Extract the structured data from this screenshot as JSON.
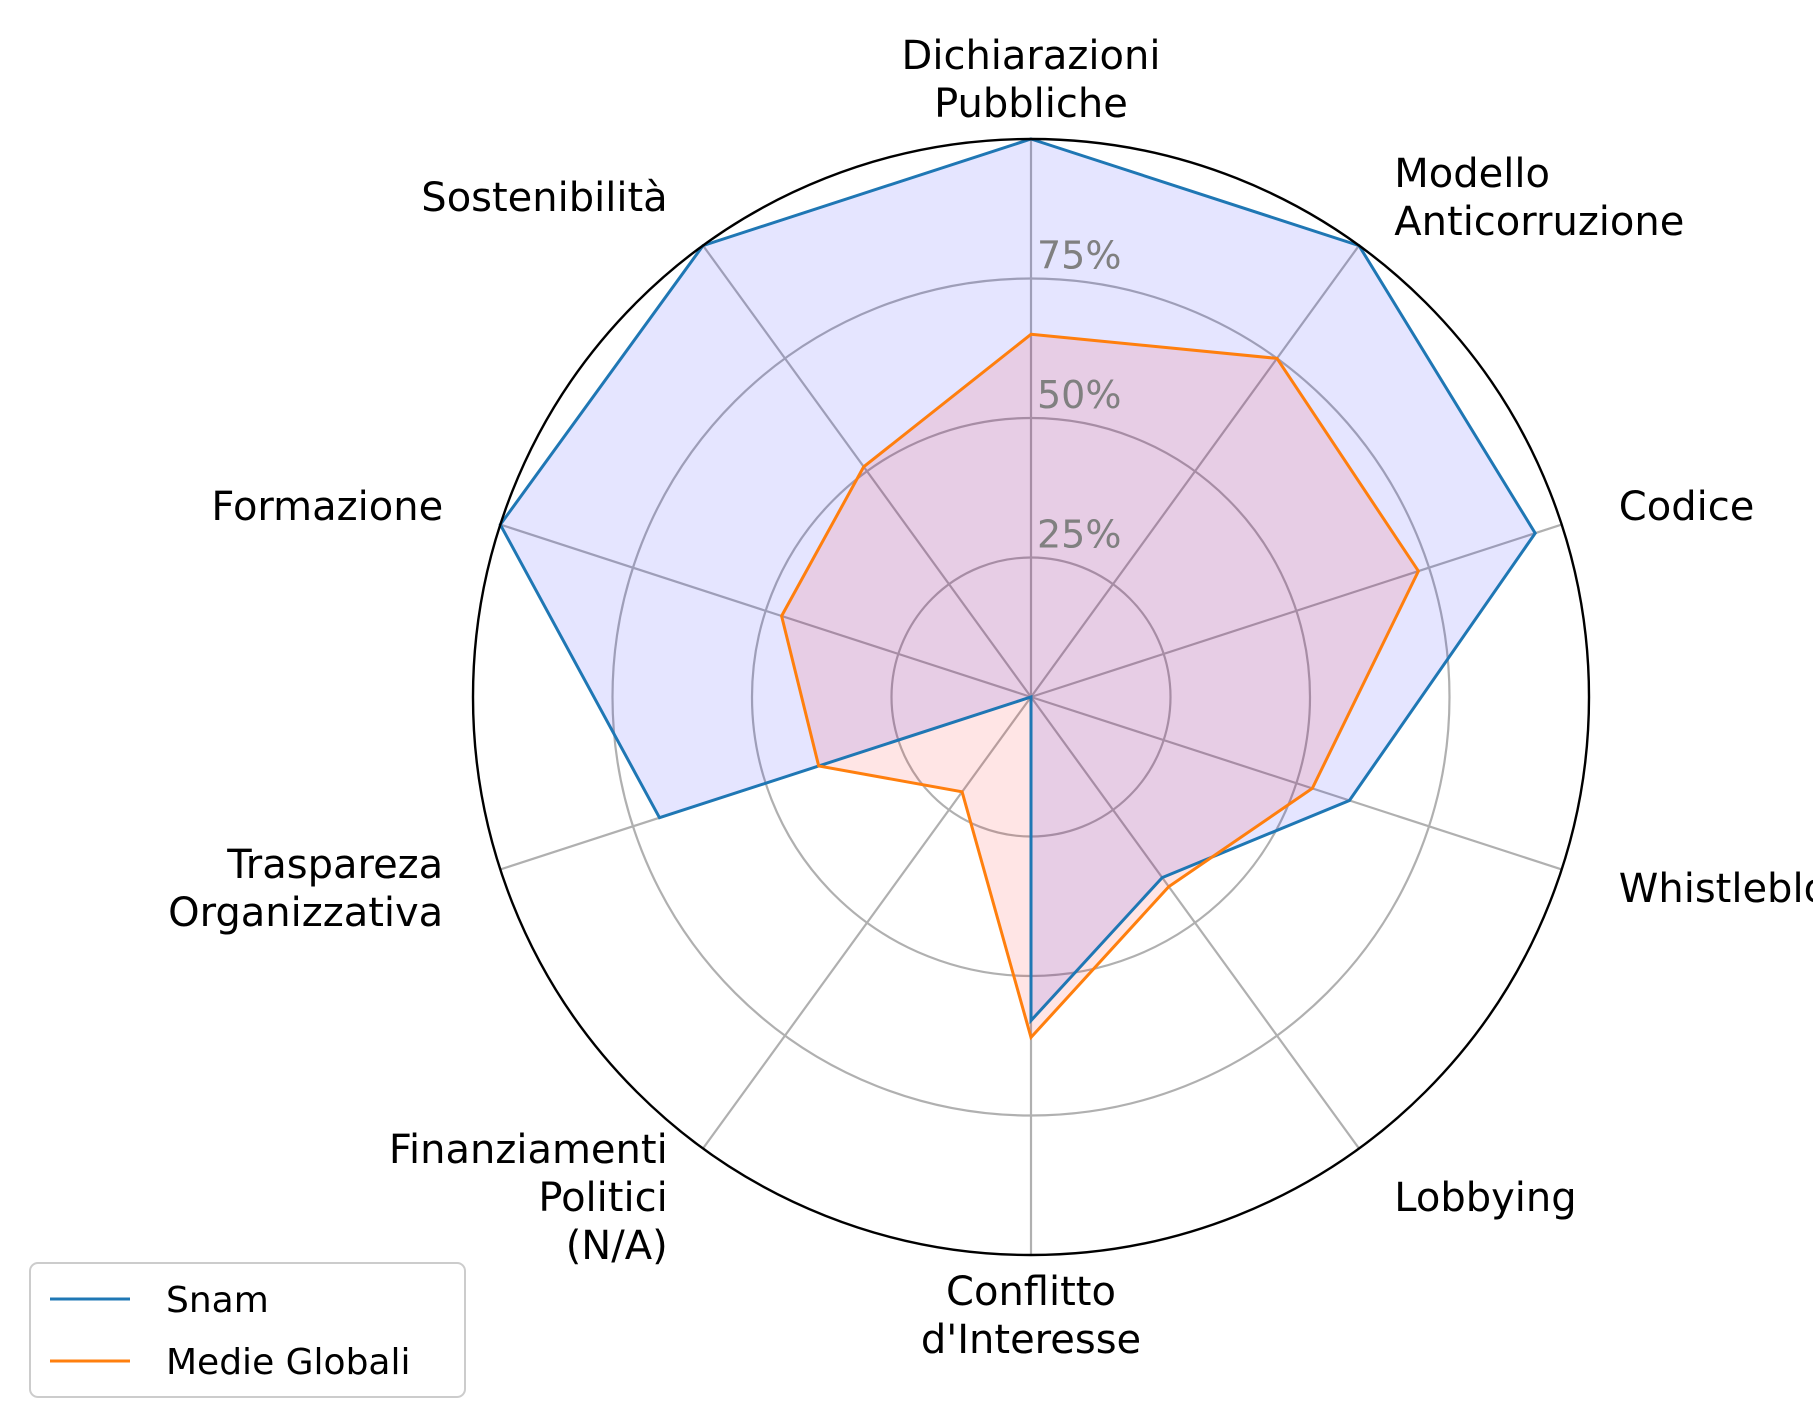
{
  "chart_data": {
    "type": "radar",
    "title": "",
    "categories": [
      [
        "Dichiarazioni",
        "Pubbliche"
      ],
      [
        "Modello",
        "Anticorruzione"
      ],
      [
        "Codice"
      ],
      [
        "Whistleblowing"
      ],
      [
        "Lobbying"
      ],
      [
        "Conflitto",
        "d'Interesse"
      ],
      [
        "Finanziamenti",
        "Politici",
        "(N/A)"
      ],
      [
        "Traspareza",
        "Organizzativa"
      ],
      [
        "Formazione"
      ],
      [
        "Sostenibilità"
      ]
    ],
    "series": [
      {
        "name": "Snam",
        "color": "#1f77b4",
        "fill": "#0000ff",
        "values": [
          100,
          100,
          95,
          60,
          40,
          58,
          0,
          70,
          100,
          100
        ]
      },
      {
        "name": "Medie Globali",
        "color": "#ff7f0e",
        "fill": "#ff0000",
        "values": [
          65,
          75,
          73,
          53,
          42,
          61,
          21,
          40,
          47,
          51
        ]
      }
    ],
    "radial_ticks": [
      {
        "value": 25,
        "label": "25%"
      },
      {
        "value": 50,
        "label": "50%"
      },
      {
        "value": 75,
        "label": "75%"
      }
    ],
    "rlim": [
      0,
      100
    ],
    "grid": true,
    "legend_position": "lower-left"
  }
}
